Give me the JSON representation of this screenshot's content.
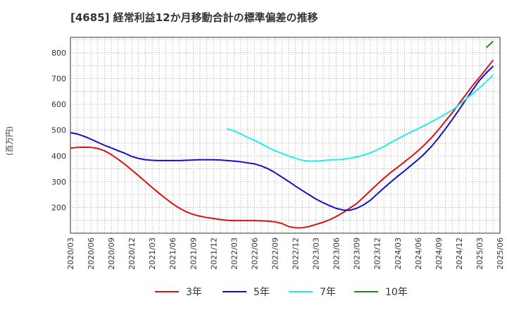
{
  "chart_data": {
    "type": "line",
    "title": "[4685]  経常利益12か月移動合計の標準偏差の推移",
    "ylabel": "(百万円)",
    "xlabel": "",
    "ylim": [
      100,
      860
    ],
    "yticks": [
      200,
      300,
      400,
      500,
      600,
      700,
      800
    ],
    "xticks": [
      "2020/03",
      "2020/06",
      "2020/09",
      "2020/12",
      "2021/03",
      "2021/06",
      "2021/09",
      "2021/12",
      "2022/03",
      "2022/06",
      "2022/09",
      "2022/12",
      "2023/03",
      "2023/06",
      "2023/09",
      "2023/12",
      "2024/03",
      "2024/06",
      "2024/09",
      "2024/12",
      "2025/03",
      "2025/06"
    ],
    "grid": true,
    "legend_position": "bottom",
    "series": [
      {
        "name": "3年",
        "color": "#dd1111",
        "points": [
          [
            "2020/03",
            430
          ],
          [
            "2020/04",
            433
          ],
          [
            "2020/05",
            434
          ],
          [
            "2020/06",
            433
          ],
          [
            "2020/07",
            429
          ],
          [
            "2020/08",
            420
          ],
          [
            "2020/09",
            405
          ],
          [
            "2020/10",
            387
          ],
          [
            "2020/11",
            367
          ],
          [
            "2020/12",
            345
          ],
          [
            "2021/01",
            323
          ],
          [
            "2021/02",
            300
          ],
          [
            "2021/03",
            277
          ],
          [
            "2021/04",
            255
          ],
          [
            "2021/05",
            234
          ],
          [
            "2021/06",
            214
          ],
          [
            "2021/07",
            197
          ],
          [
            "2021/08",
            183
          ],
          [
            "2021/09",
            173
          ],
          [
            "2021/10",
            166
          ],
          [
            "2021/11",
            161
          ],
          [
            "2021/12",
            157
          ],
          [
            "2022/01",
            153
          ],
          [
            "2022/02",
            150
          ],
          [
            "2022/03",
            149
          ],
          [
            "2022/04",
            149
          ],
          [
            "2022/05",
            149
          ],
          [
            "2022/06",
            149
          ],
          [
            "2022/07",
            148
          ],
          [
            "2022/08",
            147
          ],
          [
            "2022/09",
            144
          ],
          [
            "2022/10",
            138
          ],
          [
            "2022/11",
            126
          ],
          [
            "2022/12",
            121
          ],
          [
            "2023/01",
            121
          ],
          [
            "2023/02",
            126
          ],
          [
            "2023/03",
            134
          ],
          [
            "2023/04",
            142
          ],
          [
            "2023/05",
            152
          ],
          [
            "2023/06",
            165
          ],
          [
            "2023/07",
            180
          ],
          [
            "2023/08",
            198
          ],
          [
            "2023/09",
            215
          ],
          [
            "2023/10",
            240
          ],
          [
            "2023/11",
            265
          ],
          [
            "2023/12",
            290
          ],
          [
            "2024/01",
            314
          ],
          [
            "2024/02",
            336
          ],
          [
            "2024/03",
            356
          ],
          [
            "2024/04",
            377
          ],
          [
            "2024/05",
            398
          ],
          [
            "2024/06",
            420
          ],
          [
            "2024/07",
            445
          ],
          [
            "2024/08",
            472
          ],
          [
            "2024/09",
            502
          ],
          [
            "2024/10",
            535
          ],
          [
            "2024/11",
            567
          ],
          [
            "2024/12",
            603
          ],
          [
            "2025/01",
            638
          ],
          [
            "2025/02",
            673
          ],
          [
            "2025/03",
            705
          ],
          [
            "2025/04",
            738
          ],
          [
            "2025/05",
            772
          ]
        ]
      },
      {
        "name": "5年",
        "color": "#1111cc",
        "points": [
          [
            "2020/03",
            490
          ],
          [
            "2020/04",
            485
          ],
          [
            "2020/05",
            476
          ],
          [
            "2020/06",
            465
          ],
          [
            "2020/07",
            453
          ],
          [
            "2020/08",
            441
          ],
          [
            "2020/09",
            431
          ],
          [
            "2020/10",
            420
          ],
          [
            "2020/11",
            410
          ],
          [
            "2020/12",
            398
          ],
          [
            "2021/01",
            390
          ],
          [
            "2021/02",
            385
          ],
          [
            "2021/03",
            383
          ],
          [
            "2021/04",
            382
          ],
          [
            "2021/05",
            382
          ],
          [
            "2021/06",
            382
          ],
          [
            "2021/07",
            382
          ],
          [
            "2021/08",
            383
          ],
          [
            "2021/09",
            384
          ],
          [
            "2021/10",
            385
          ],
          [
            "2021/11",
            385
          ],
          [
            "2021/12",
            385
          ],
          [
            "2022/01",
            384
          ],
          [
            "2022/02",
            382
          ],
          [
            "2022/03",
            380
          ],
          [
            "2022/04",
            377
          ],
          [
            "2022/05",
            373
          ],
          [
            "2022/06",
            369
          ],
          [
            "2022/07",
            361
          ],
          [
            "2022/08",
            350
          ],
          [
            "2022/09",
            335
          ],
          [
            "2022/10",
            318
          ],
          [
            "2022/11",
            301
          ],
          [
            "2022/12",
            283
          ],
          [
            "2023/01",
            266
          ],
          [
            "2023/02",
            249
          ],
          [
            "2023/03",
            233
          ],
          [
            "2023/04",
            219
          ],
          [
            "2023/05",
            207
          ],
          [
            "2023/06",
            196
          ],
          [
            "2023/07",
            190
          ],
          [
            "2023/08",
            189
          ],
          [
            "2023/09",
            197
          ],
          [
            "2023/10",
            210
          ],
          [
            "2023/11",
            228
          ],
          [
            "2023/12",
            252
          ],
          [
            "2024/01",
            276
          ],
          [
            "2024/02",
            299
          ],
          [
            "2024/03",
            321
          ],
          [
            "2024/04",
            342
          ],
          [
            "2024/05",
            364
          ],
          [
            "2024/06",
            386
          ],
          [
            "2024/07",
            410
          ],
          [
            "2024/08",
            438
          ],
          [
            "2024/09",
            470
          ],
          [
            "2024/10",
            505
          ],
          [
            "2024/11",
            541
          ],
          [
            "2024/12",
            579
          ],
          [
            "2025/01",
            618
          ],
          [
            "2025/02",
            656
          ],
          [
            "2025/03",
            693
          ],
          [
            "2025/04",
            722
          ],
          [
            "2025/05",
            748
          ]
        ]
      },
      {
        "name": "7年",
        "color": "#22eeee",
        "points": [
          [
            "2022/02",
            505
          ],
          [
            "2022/03",
            497
          ],
          [
            "2022/04",
            485
          ],
          [
            "2022/05",
            472
          ],
          [
            "2022/06",
            460
          ],
          [
            "2022/07",
            447
          ],
          [
            "2022/08",
            433
          ],
          [
            "2022/09",
            420
          ],
          [
            "2022/10",
            410
          ],
          [
            "2022/11",
            400
          ],
          [
            "2022/12",
            391
          ],
          [
            "2023/01",
            383
          ],
          [
            "2023/02",
            380
          ],
          [
            "2023/03",
            380
          ],
          [
            "2023/04",
            382
          ],
          [
            "2023/05",
            384
          ],
          [
            "2023/06",
            385
          ],
          [
            "2023/07",
            387
          ],
          [
            "2023/08",
            391
          ],
          [
            "2023/09",
            396
          ],
          [
            "2023/10",
            403
          ],
          [
            "2023/11",
            412
          ],
          [
            "2023/12",
            424
          ],
          [
            "2024/01",
            437
          ],
          [
            "2024/02",
            452
          ],
          [
            "2024/03",
            466
          ],
          [
            "2024/04",
            480
          ],
          [
            "2024/05",
            493
          ],
          [
            "2024/06",
            506
          ],
          [
            "2024/07",
            519
          ],
          [
            "2024/08",
            533
          ],
          [
            "2024/09",
            547
          ],
          [
            "2024/10",
            562
          ],
          [
            "2024/11",
            578
          ],
          [
            "2024/12",
            598
          ],
          [
            "2025/01",
            620
          ],
          [
            "2025/02",
            642
          ],
          [
            "2025/03",
            664
          ],
          [
            "2025/04",
            688
          ],
          [
            "2025/05",
            714
          ]
        ]
      },
      {
        "name": "10年",
        "color": "#228822",
        "points": [
          [
            "2025/04",
            820
          ],
          [
            "2025/05",
            845
          ]
        ]
      }
    ]
  }
}
